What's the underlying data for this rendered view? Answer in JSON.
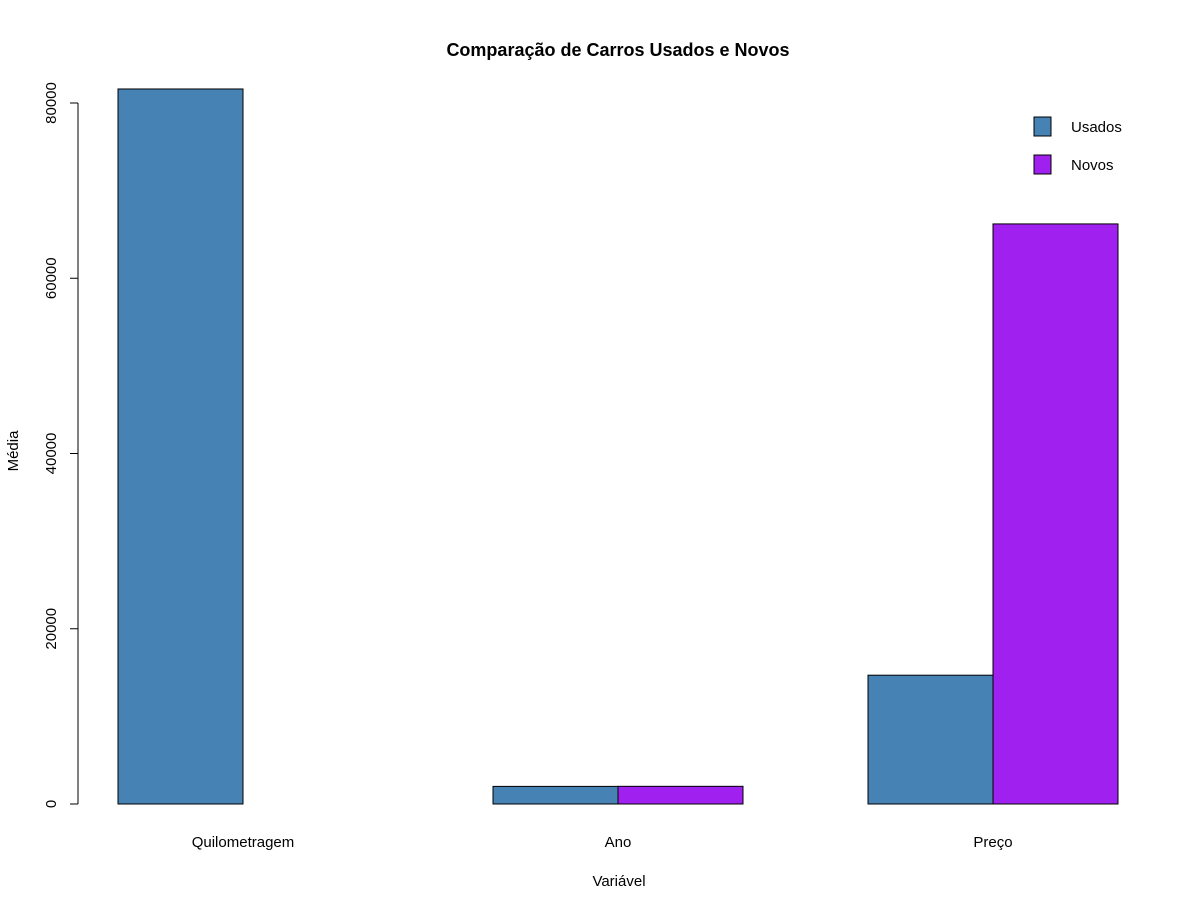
{
  "chart_data": {
    "type": "bar",
    "title": "Comparação de Carros Usados e Novos",
    "xlabel": "Variável",
    "ylabel": "Média",
    "categories": [
      "Quilometragem",
      "Ano",
      "Preço"
    ],
    "series": [
      {
        "name": "Usados",
        "color": "#4682B4",
        "values": [
          81600,
          2010,
          14700
        ]
      },
      {
        "name": "Novos",
        "color": "#A020F0",
        "values": [
          0,
          2018,
          66200
        ]
      }
    ],
    "ylim": [
      0,
      80000
    ],
    "yticks": [
      0,
      20000,
      40000,
      60000,
      80000
    ],
    "ytick_labels": [
      "0",
      "20000",
      "40000",
      "60000",
      "80000"
    ],
    "grid": false,
    "legend_position": "top-right"
  }
}
